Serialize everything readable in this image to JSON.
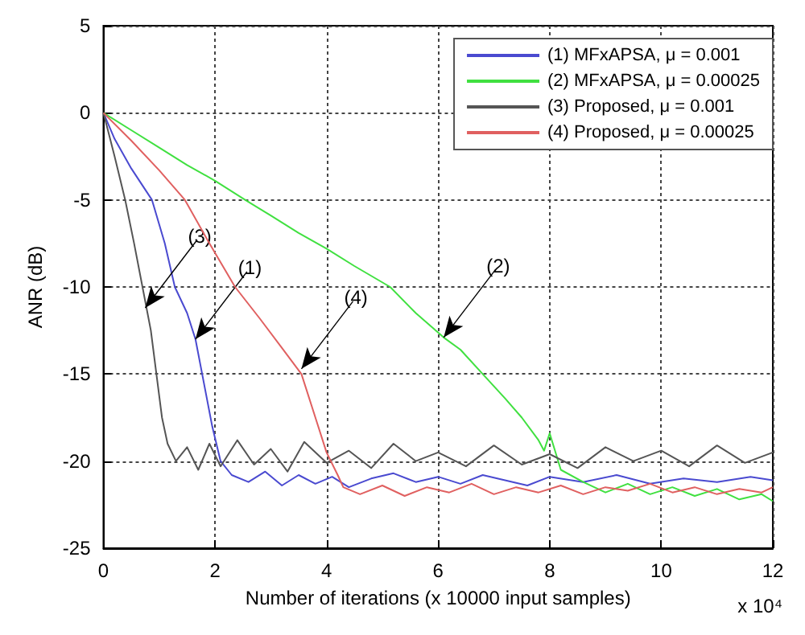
{
  "chart_data": {
    "type": "line",
    "xlabel": "Number of iterations (x 10000 input samples)",
    "ylabel": "ANR (dB)",
    "xlim": [
      0,
      12
    ],
    "ylim": [
      -25,
      5
    ],
    "xticks": [
      0,
      2,
      4,
      6,
      8,
      10,
      12
    ],
    "yticks": [
      -25,
      -20,
      -15,
      -10,
      -5,
      0,
      5
    ],
    "grid": true,
    "legend": "top right",
    "line_style": "solid",
    "marker": "none",
    "annotations": [
      "x 10⁴",
      {
        "text": "(3)",
        "x": 0.75,
        "y": -11.2
      },
      {
        "text": "(1)",
        "x": 1.65,
        "y": -13
      },
      {
        "text": "(4)",
        "x": 3.55,
        "y": -14.7
      },
      {
        "text": "(2)",
        "x": 6.1,
        "y": -12.9
      }
    ],
    "series": [
      {
        "name": "(1) MFxAPSA, μ = 0.001",
        "color": "#4a4ad0",
        "x": [
          0,
          0.2,
          0.5,
          0.87,
          1.1,
          1.28,
          1.5,
          1.65,
          1.8,
          1.95,
          2.1,
          2.3,
          2.6,
          2.9,
          3.2,
          3.5,
          3.8,
          4.1,
          4.4,
          4.8,
          5.2,
          5.6,
          6,
          6.4,
          6.8,
          7.2,
          7.6,
          8,
          8.6,
          9.2,
          9.8,
          10.4,
          11,
          11.6,
          12
        ],
        "values": [
          0,
          -1.5,
          -3.2,
          -5,
          -7.5,
          -10,
          -11.5,
          -13,
          -15.5,
          -18,
          -20,
          -20.8,
          -21.2,
          -20.6,
          -21.4,
          -20.8,
          -21.3,
          -20.9,
          -21.5,
          -21,
          -20.7,
          -21.2,
          -20.9,
          -21.3,
          -20.8,
          -21.1,
          -21.4,
          -20.9,
          -21.2,
          -20.8,
          -21.3,
          -21,
          -21.2,
          -20.9,
          -21.1
        ]
      },
      {
        "name": "(2) MFxAPSA, μ = 0.00025",
        "color": "#40e040",
        "x": [
          0,
          0.5,
          1,
          1.5,
          2,
          2.54,
          3,
          3.5,
          4,
          4.5,
          5.14,
          5.6,
          6.1,
          6.4,
          6.8,
          7.2,
          7.5,
          7.8,
          7.9,
          8,
          8.2,
          8.6,
          9,
          9.4,
          9.8,
          10.2,
          10.6,
          11,
          11.4,
          11.8,
          12
        ],
        "values": [
          0,
          -1,
          -2,
          -3,
          -3.9,
          -5,
          -5.9,
          -6.9,
          -7.8,
          -8.8,
          -10,
          -11.5,
          -12.9,
          -13.6,
          -15,
          -16.4,
          -17.5,
          -18.8,
          -19.4,
          -18.4,
          -20.5,
          -21.2,
          -21.8,
          -21.3,
          -21.9,
          -21.5,
          -22,
          -21.6,
          -22.2,
          -21.9,
          -22.3
        ]
      },
      {
        "name": "(3) Proposed, μ = 0.001",
        "color": "#555555",
        "x": [
          0,
          0.2,
          0.39,
          0.55,
          0.7,
          0.85,
          0.95,
          1.05,
          1.15,
          1.3,
          1.5,
          1.7,
          1.9,
          2.1,
          2.4,
          2.7,
          3,
          3.3,
          3.6,
          4,
          4.4,
          4.8,
          5.2,
          5.6,
          6,
          6.5,
          7,
          7.5,
          8,
          8.5,
          9,
          9.5,
          10,
          10.5,
          11,
          11.5,
          12
        ],
        "values": [
          0,
          -2.5,
          -5,
          -7.5,
          -10,
          -12.5,
          -15,
          -17.5,
          -19,
          -20,
          -19.2,
          -20.5,
          -19,
          -20.3,
          -18.8,
          -20.2,
          -19.3,
          -20.6,
          -18.9,
          -20.1,
          -19.4,
          -20.4,
          -19,
          -20,
          -19.5,
          -20.3,
          -19.1,
          -20.2,
          -19.6,
          -20.4,
          -19.2,
          -20,
          -19.4,
          -20.3,
          -19.1,
          -20.1,
          -19.5
        ]
      },
      {
        "name": "(4) Proposed, μ = 0.00025",
        "color": "#e06060",
        "x": [
          0,
          0.5,
          1,
          1.46,
          1.9,
          2.36,
          2.8,
          3.2,
          3.55,
          3.8,
          4,
          4.2,
          4.3,
          4.6,
          5,
          5.4,
          5.8,
          6.2,
          6.6,
          7,
          7.4,
          7.8,
          8.2,
          8.6,
          9,
          9.4,
          9.8,
          10.2,
          10.6,
          11,
          11.4,
          11.8,
          12
        ],
        "values": [
          0,
          -1.6,
          -3.3,
          -5,
          -7.5,
          -10,
          -11.8,
          -13.5,
          -15,
          -17.5,
          -19.5,
          -20.8,
          -21.5,
          -21.9,
          -21.4,
          -22,
          -21.5,
          -21.8,
          -21.3,
          -21.9,
          -21.5,
          -21.8,
          -21.4,
          -21.9,
          -21.5,
          -21.7,
          -21.3,
          -21.8,
          -21.5,
          -21.9,
          -21.6,
          -21.8,
          -21.5
        ]
      }
    ]
  }
}
